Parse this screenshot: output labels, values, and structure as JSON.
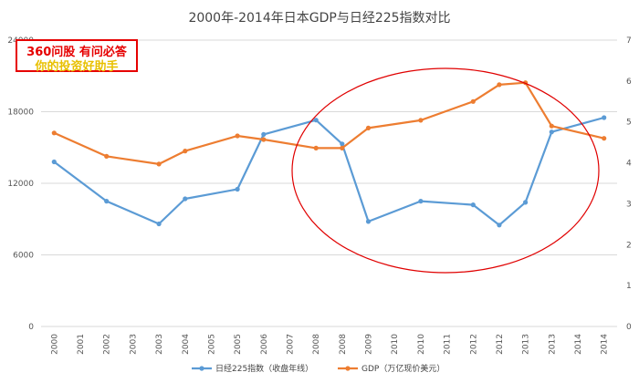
{
  "chart_data": {
    "type": "line",
    "title": "2000年-2014年日本GDP与日经225指数对比",
    "categories": [
      "2000",
      "2001",
      "2002",
      "2003",
      "2003",
      "2004",
      "2005",
      "2005",
      "2006",
      "2007",
      "2008",
      "2008",
      "2009",
      "2010",
      "2010",
      "2011",
      "2012",
      "2012",
      "2013",
      "2013",
      "2014",
      "2014"
    ],
    "series": [
      {
        "name": "日经225指数（收盘年线）",
        "axis": "left",
        "color": "#5b9bd5",
        "values": [
          13800,
          null,
          10500,
          null,
          8600,
          10700,
          null,
          11500,
          16100,
          null,
          17300,
          15300,
          8800,
          null,
          10500,
          null,
          10200,
          8500,
          10400,
          16300,
          null,
          17500
        ]
      },
      {
        "name": "GDP（万亿现价美元）",
        "axis": "right",
        "color": "#ed7d31",
        "values": [
          4.73,
          null,
          4.16,
          null,
          3.97,
          4.29,
          null,
          4.66,
          4.57,
          null,
          4.36,
          4.36,
          4.85,
          null,
          5.04,
          null,
          5.5,
          5.91,
          5.96,
          4.9,
          null,
          4.6
        ]
      }
    ],
    "y_left": {
      "min": 0,
      "max": 24000,
      "ticks": [
        "0",
        "6000",
        "12000",
        "18000",
        "24000"
      ]
    },
    "y_right": {
      "min": 0,
      "max": 7,
      "ticks": [
        "0",
        "1",
        "2",
        "3",
        "4",
        "5",
        "6",
        "7"
      ]
    },
    "grid": true,
    "legend": "bottom",
    "annotation": "red ellipse highlighting 2007-2014"
  },
  "watermark": {
    "line1": "360问股 有问必答",
    "line2": "你的投资好助手",
    "border_color": "#e60000",
    "line1_color": "#e60000",
    "line2_color": "#e8c000"
  }
}
